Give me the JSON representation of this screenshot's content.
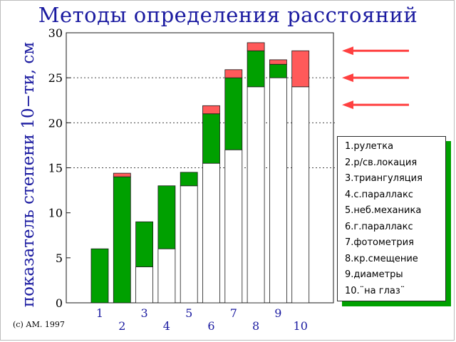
{
  "chart_data": {
    "type": "bar",
    "stacked": true,
    "title": "Методы определения расстояний",
    "ylabel": "показатель степени 10−ти, см",
    "ylim": [
      0,
      30
    ],
    "yticks": [
      0,
      5,
      10,
      15,
      20,
      25,
      30
    ],
    "grid": "horizontal dotted at 15, 20, 25, 30",
    "legend_placement": "right",
    "categories": [
      "1",
      "2",
      "3",
      "4",
      "5",
      "6",
      "7",
      "8",
      "9",
      "10"
    ],
    "series": [
      {
        "color": "#ffffff",
        "values": [
          0,
          0,
          4,
          6,
          13,
          15.5,
          17,
          24,
          25,
          24
        ]
      },
      {
        "color": "#00a000",
        "values": [
          6,
          14,
          5,
          7,
          1.5,
          5.5,
          8,
          4,
          1.5,
          0
        ]
      },
      {
        "color": "#ff5a5a",
        "values": [
          0,
          0.4,
          0,
          0,
          0,
          0.9,
          0.9,
          0.9,
          0.5,
          4
        ]
      }
    ],
    "legend_items": [
      "1.рулетка",
      "2.р/св.локация",
      "3.триангуляция",
      "4.с.параллакс",
      "5.неб.механика",
      "6.г.параллакс",
      "7.фотометрия",
      "8.кр.смещение",
      "9.диаметры",
      "10.¨на глаз¨"
    ],
    "arrows": [
      {
        "target_y": 28,
        "color": "#ff4040"
      },
      {
        "target_y": 25,
        "color": "#ff4040"
      },
      {
        "target_y": 22,
        "color": "#ff4040"
      }
    ]
  },
  "copyright": "(c) АМ. 1997"
}
